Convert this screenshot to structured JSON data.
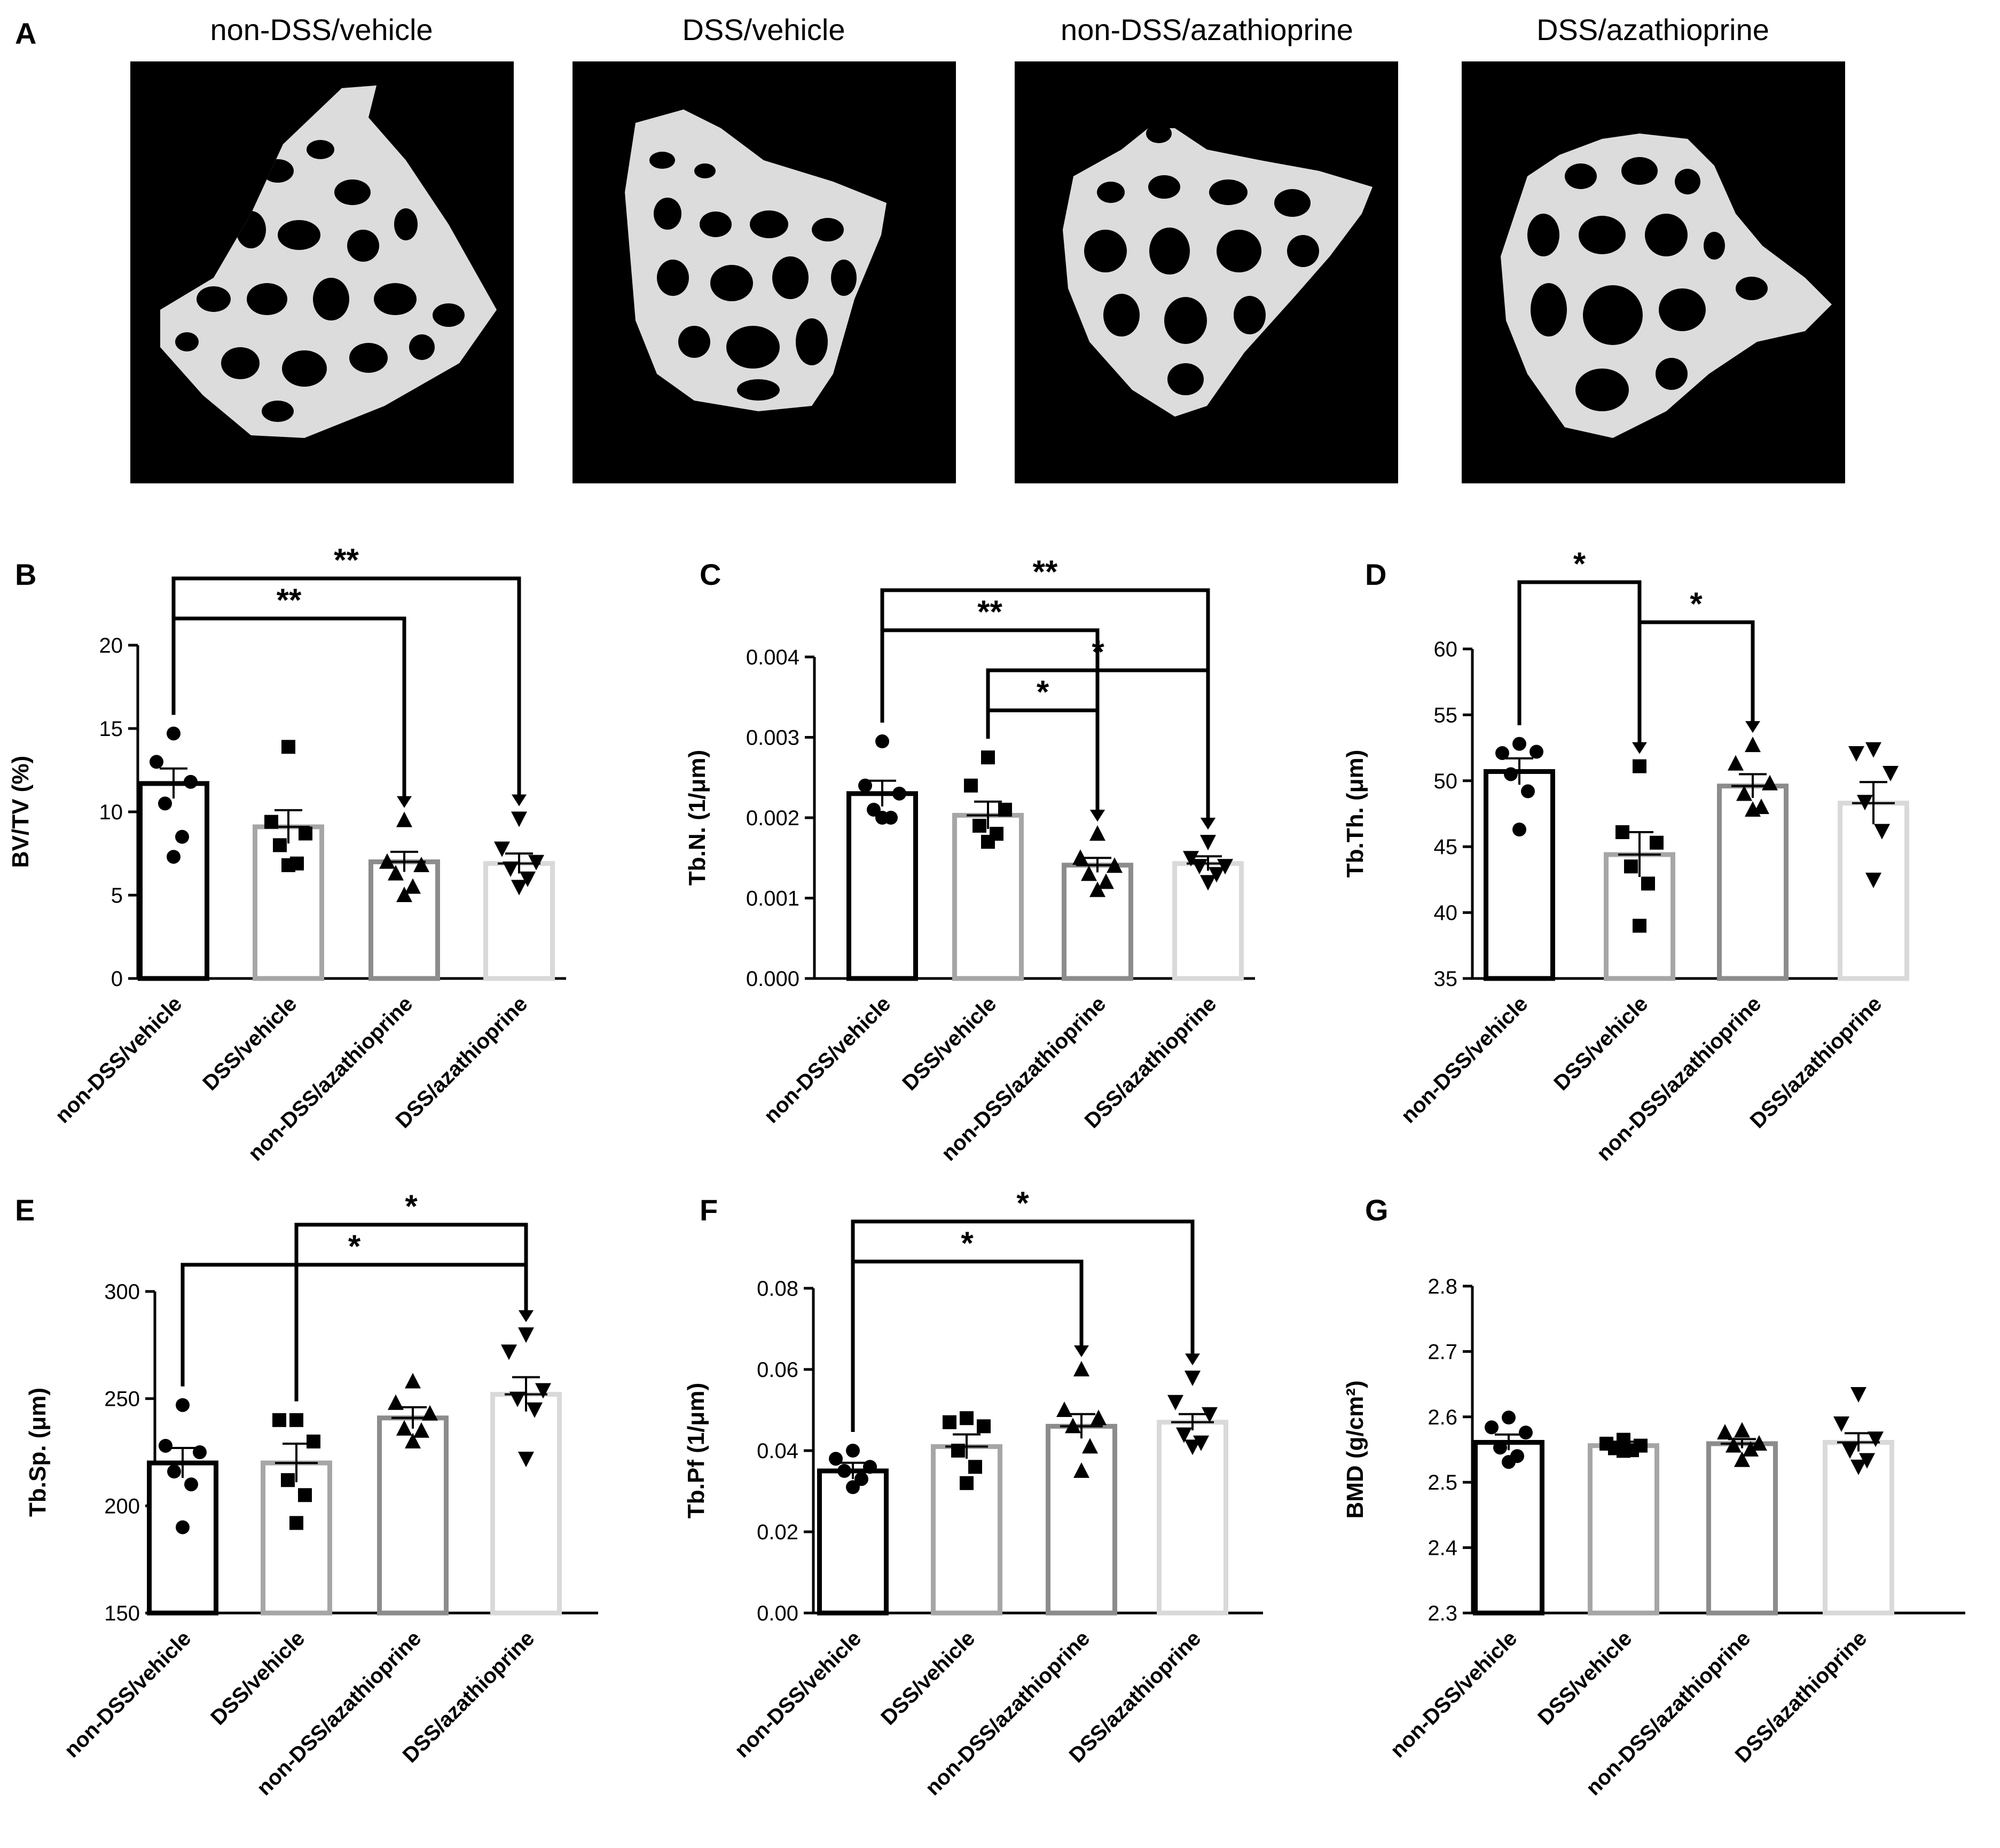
{
  "groups": [
    "non-DSS/vehicle",
    "DSS/vehicle",
    "non-DSS/azathioprine",
    "DSS/azathioprine"
  ],
  "colors": {
    "bars": [
      "#000000",
      "#a6a6a6",
      "#8c8c8c",
      "#d9d9d9"
    ],
    "points": "#000000",
    "microct_background": "#000000",
    "trabecular_bone": "#e0e0e0"
  },
  "panel_a": {
    "letter": "A",
    "titles": [
      "non-DSS/vehicle",
      "DSS/vehicle",
      "non-DSS/azathioprine",
      "DSS/azathioprine"
    ]
  },
  "chart_data": [
    {
      "panel": "B",
      "type": "bar",
      "ylabel": "BV/TV (%)",
      "ylim": [
        0,
        20
      ],
      "yticks": [
        "0",
        "5",
        "10",
        "15",
        "20"
      ],
      "categories": [
        "non-DSS/vehicle",
        "DSS/vehicle",
        "non-DSS/azathioprine",
        "DSS/azathioprine"
      ],
      "means": [
        11.7,
        9.1,
        7.0,
        6.9
      ],
      "sem": [
        0.9,
        1.0,
        0.6,
        0.6
      ],
      "markers": [
        "circle",
        "square",
        "triangle-up",
        "triangle-down"
      ],
      "points": [
        [
          14.7,
          13.0,
          11.8,
          10.5,
          8.5,
          7.3
        ],
        [
          13.9,
          9.4,
          8.7,
          8.0,
          6.9,
          6.8
        ],
        [
          9.5,
          7.0,
          6.8,
          6.3,
          5.5,
          5.0
        ],
        [
          9.6,
          7.8,
          7.0,
          6.6,
          6.0,
          5.5
        ]
      ],
      "brackets": [
        {
          "from": 0,
          "to": 3,
          "label": "**"
        },
        {
          "from": 0,
          "to": 2,
          "label": "**"
        }
      ]
    },
    {
      "panel": "C",
      "type": "bar",
      "ylabel": "Tb.N. (1/μm)",
      "ylim": [
        0,
        0.004
      ],
      "yticks": [
        "0.000",
        "0.001",
        "0.002",
        "0.003",
        "0.004"
      ],
      "categories": [
        "non-DSS/vehicle",
        "DSS/vehicle",
        "non-DSS/azathioprine",
        "DSS/azathioprine"
      ],
      "means": [
        0.0023,
        0.00203,
        0.00141,
        0.00143
      ],
      "sem": [
        0.00016,
        0.00017,
        9e-05,
        9e-05
      ],
      "markers": [
        "circle",
        "square",
        "triangle-up",
        "triangle-down"
      ],
      "points": [
        [
          0.00295,
          0.0024,
          0.0023,
          0.0021,
          0.002,
          0.002
        ],
        [
          0.00275,
          0.0024,
          0.0021,
          0.0019,
          0.0018,
          0.0017
        ],
        [
          0.0018,
          0.0015,
          0.0014,
          0.0013,
          0.0012,
          0.0011
        ],
        [
          0.0017,
          0.0015,
          0.0014,
          0.0014,
          0.0013,
          0.0012
        ]
      ],
      "brackets": [
        {
          "from": 0,
          "to": 3,
          "label": "**"
        },
        {
          "from": 0,
          "to": 2,
          "label": "**"
        },
        {
          "from": 1,
          "to": 3,
          "label": "*"
        },
        {
          "from": 1,
          "to": 2,
          "label": "*"
        }
      ]
    },
    {
      "panel": "D",
      "type": "bar",
      "ylabel": "Tb.Th. (μm)",
      "ylim": [
        35,
        60
      ],
      "yticks": [
        "35",
        "40",
        "45",
        "50",
        "55",
        "60"
      ],
      "categories": [
        "non-DSS/vehicle",
        "DSS/vehicle",
        "non-DSS/azathioprine",
        "DSS/azathioprine"
      ],
      "means": [
        50.7,
        44.4,
        49.6,
        48.3
      ],
      "sem": [
        1.0,
        1.7,
        0.9,
        1.6
      ],
      "markers": [
        "circle",
        "square",
        "triangle-up",
        "triangle-down"
      ],
      "points": [
        [
          52.8,
          52.1,
          52.2,
          50.5,
          49.2,
          46.3
        ],
        [
          51.1,
          46.1,
          45.3,
          43.5,
          42.2,
          39.0
        ],
        [
          52.7,
          51.3,
          49.8,
          49.0,
          48.0,
          47.8
        ],
        [
          52.4,
          52.1,
          50.6,
          48.4,
          46.2,
          42.5
        ]
      ],
      "brackets": [
        {
          "from": 0,
          "to": 1,
          "label": "*"
        },
        {
          "from": 1,
          "to": 2,
          "label": "*"
        }
      ]
    },
    {
      "panel": "E",
      "type": "bar",
      "ylabel": "Tb.Sp. (μm)",
      "ylim": [
        150,
        300
      ],
      "yticks": [
        "150",
        "200",
        "250",
        "300"
      ],
      "categories": [
        "non-DSS/vehicle",
        "DSS/vehicle",
        "non-DSS/azathioprine",
        "DSS/azathioprine"
      ],
      "means": [
        220,
        220,
        241,
        252
      ],
      "sem": [
        7,
        9,
        5,
        8
      ],
      "markers": [
        "circle",
        "square",
        "triangle-up",
        "triangle-down"
      ],
      "points": [
        [
          247,
          228,
          225,
          216,
          210,
          190
        ],
        [
          240,
          240,
          230,
          212,
          205,
          192
        ],
        [
          258,
          248,
          243,
          236,
          235,
          230
        ],
        [
          280,
          272,
          254,
          250,
          245,
          222
        ]
      ],
      "brackets": [
        {
          "from": 1,
          "to": 3,
          "label": "*"
        },
        {
          "from": 0,
          "to": 3,
          "label": "*"
        }
      ]
    },
    {
      "panel": "F",
      "type": "bar",
      "ylabel": "Tb.Pf (1/μm)",
      "ylim": [
        0,
        0.08
      ],
      "yticks": [
        "0.00",
        "0.02",
        "0.04",
        "0.06",
        "0.08"
      ],
      "categories": [
        "non-DSS/vehicle",
        "DSS/vehicle",
        "non-DSS/azathioprine",
        "DSS/azathioprine"
      ],
      "means": [
        0.035,
        0.041,
        0.046,
        0.047
      ],
      "sem": [
        0.002,
        0.003,
        0.003,
        0.002
      ],
      "markers": [
        "circle",
        "square",
        "triangle-up",
        "triangle-down"
      ],
      "points": [
        [
          0.04,
          0.038,
          0.036,
          0.035,
          0.033,
          0.031
        ],
        [
          0.048,
          0.047,
          0.046,
          0.04,
          0.036,
          0.032
        ],
        [
          0.06,
          0.05,
          0.048,
          0.046,
          0.041,
          0.035
        ],
        [
          0.058,
          0.052,
          0.049,
          0.044,
          0.042,
          0.041
        ]
      ],
      "brackets": [
        {
          "from": 0,
          "to": 3,
          "label": "*"
        },
        {
          "from": 0,
          "to": 2,
          "label": "*"
        }
      ]
    },
    {
      "panel": "G",
      "type": "bar",
      "ylabel": "BMD (g/cm²)",
      "ylim": [
        2.3,
        2.8
      ],
      "yticks": [
        "2.3",
        "2.4",
        "2.5",
        "2.6",
        "2.7",
        "2.8"
      ],
      "categories": [
        "non-DSS/vehicle",
        "DSS/vehicle",
        "non-DSS/azathioprine",
        "DSS/azathioprine"
      ],
      "means": [
        2.561,
        2.556,
        2.559,
        2.561
      ],
      "sem": [
        0.012,
        0.006,
        0.007,
        0.014
      ],
      "markers": [
        "circle",
        "square",
        "triangle-up",
        "triangle-down"
      ],
      "points": [
        [
          2.599,
          2.584,
          2.576,
          2.553,
          2.54,
          2.531
        ],
        [
          2.565,
          2.559,
          2.556,
          2.552,
          2.549,
          2.548
        ],
        [
          2.579,
          2.576,
          2.559,
          2.556,
          2.55,
          2.534
        ],
        [
          2.635,
          2.59,
          2.567,
          2.549,
          2.534,
          2.524
        ]
      ],
      "brackets": []
    }
  ]
}
